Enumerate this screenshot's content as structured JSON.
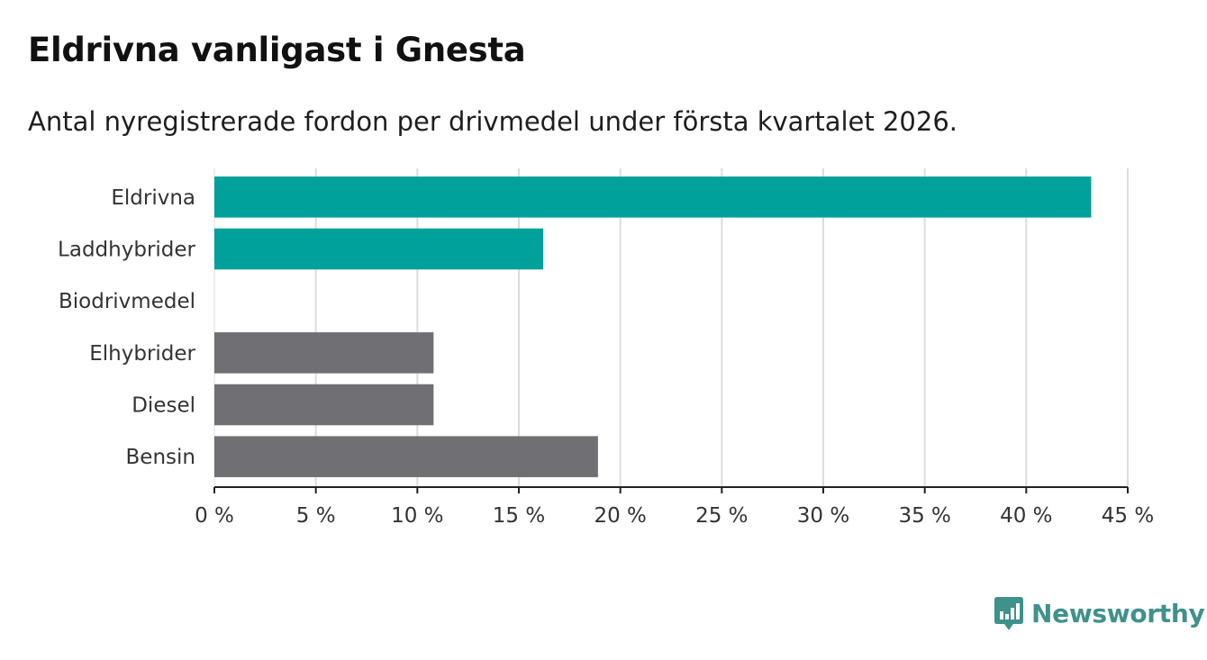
{
  "header": {
    "title": "Eldrivna vanligast i Gnesta",
    "subtitle": "Antal nyregistrerade fordon per drivmedel under första kvartalet 2026."
  },
  "logo": {
    "text": "Newsworthy",
    "icon": "newsworthy-chart-bubble-icon",
    "color": "#3f918c"
  },
  "chart_data": {
    "type": "bar",
    "orientation": "horizontal",
    "categories": [
      "Eldrivna",
      "Laddhybrider",
      "Biodrivmedel",
      "Elhybrider",
      "Diesel",
      "Bensin"
    ],
    "values": [
      43.2,
      16.2,
      0,
      10.8,
      10.8,
      18.9
    ],
    "unit": "%",
    "colors": [
      "#00a19a",
      "#00a19a",
      "#00a19a",
      "#706f74",
      "#706f74",
      "#706f74"
    ],
    "xlim": [
      0,
      45
    ],
    "xticks": [
      0,
      5,
      10,
      15,
      20,
      25,
      30,
      35,
      40,
      45
    ],
    "xtick_labels": [
      "0 %",
      "5 %",
      "10 %",
      "15 %",
      "20 %",
      "25 %",
      "30 %",
      "35 %",
      "40 %",
      "45 %"
    ],
    "grid": true,
    "xlabel": "",
    "ylabel": ""
  }
}
